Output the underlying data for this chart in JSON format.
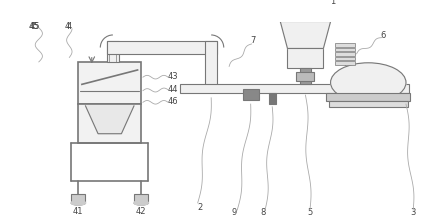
{
  "bg_color": "#ffffff",
  "lc": "#aaaaaa",
  "dc": "#777777",
  "label_color": "#444444",
  "figsize": [
    4.43,
    2.19
  ],
  "dpi": 100,
  "label_fs": 6.0
}
